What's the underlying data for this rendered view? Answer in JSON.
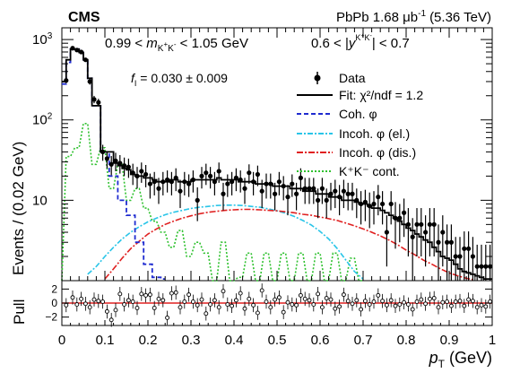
{
  "header": {
    "experiment": "CMS",
    "system": "PbPb 1.68 μb",
    "lumi_exp": "-1",
    "energy": "(5.36 TeV)"
  },
  "cuts": {
    "mass_left": "0.99 < ",
    "mass_var": "m",
    "mass_sub": "K",
    "mass_sub_sup1": "+",
    "mass_sub_mid": "K",
    "mass_sub_sup2": "-",
    "mass_right": " < 1.05 GeV",
    "rap_left": "0.6 < |",
    "rap_var": "y",
    "rap_sup": "K",
    "rap_sup2": "+",
    "rap_sup3": "K",
    "rap_sup4": "-",
    "rap_right": "| < 0.7"
  },
  "fit_param": {
    "symbol": "f",
    "sub": "I",
    "value": " = 0.030 ± 0.009"
  },
  "legend": [
    {
      "label": "Data"
    },
    {
      "label": "Fit: χ²/ndf = 1.2"
    },
    {
      "label": "Coh. φ"
    },
    {
      "label": "Incoh. φ (el.)"
    },
    {
      "label": "Incoh. φ (dis.)"
    },
    {
      "label": "K⁺K⁻ cont."
    }
  ],
  "axes": {
    "ylabel_main": "Events / (0.02 GeV)",
    "ylabel_pull": "Pull",
    "xlabel": "p",
    "xlabel_sub": "T",
    "xlabel_unit": " (GeV)",
    "x_ticks": [
      "0",
      "0.1",
      "0.2",
      "0.3",
      "0.4",
      "0.5",
      "0.6",
      "0.7",
      "0.8",
      "0.9",
      "1"
    ],
    "y_ticks": [
      {
        "base": "10",
        "exp": "3"
      },
      {
        "base": "10",
        "exp": "2"
      },
      {
        "base": "10",
        "exp": ""
      }
    ],
    "pull_ticks": [
      "2",
      "0",
      "−2"
    ]
  },
  "colors": {
    "fit": "#000000",
    "coherent": "#1f2bd0",
    "incoh_el": "#29c5e8",
    "incoh_dis": "#e02020",
    "cont": "#2fc12f",
    "pull_zero": "#e02020"
  },
  "chart_data": {
    "type": "scatter",
    "xlim": [
      0,
      1
    ],
    "ylim": [
      1,
      1400
    ],
    "y_scale": "log",
    "bin_width": 0.01,
    "data": {
      "x": [
        0.01,
        0.025,
        0.035,
        0.045,
        0.055,
        0.065,
        0.075,
        0.085,
        0.095,
        0.105,
        0.115,
        0.125,
        0.135,
        0.145,
        0.155,
        0.165,
        0.175,
        0.185,
        0.195,
        0.205,
        0.215,
        0.225,
        0.235,
        0.245,
        0.255,
        0.265,
        0.275,
        0.285,
        0.295,
        0.305,
        0.315,
        0.325,
        0.335,
        0.345,
        0.355,
        0.365,
        0.375,
        0.385,
        0.395,
        0.405,
        0.415,
        0.425,
        0.435,
        0.445,
        0.455,
        0.465,
        0.475,
        0.485,
        0.495,
        0.505,
        0.515,
        0.525,
        0.535,
        0.545,
        0.555,
        0.565,
        0.575,
        0.585,
        0.595,
        0.605,
        0.615,
        0.625,
        0.635,
        0.645,
        0.655,
        0.665,
        0.675,
        0.685,
        0.695,
        0.705,
        0.715,
        0.725,
        0.735,
        0.745,
        0.755,
        0.765,
        0.775,
        0.785,
        0.795,
        0.805,
        0.815,
        0.825,
        0.835,
        0.845,
        0.855,
        0.865,
        0.875,
        0.885,
        0.895,
        0.905,
        0.915,
        0.925,
        0.935,
        0.945,
        0.955,
        0.965,
        0.975,
        0.985,
        0.995
      ],
      "y": [
        310,
        780,
        740,
        700,
        560,
        300,
        180,
        165,
        40,
        33,
        28,
        31,
        29,
        27,
        26,
        22,
        20,
        23,
        21,
        16,
        17,
        14,
        17,
        18,
        17,
        19,
        13,
        17,
        16,
        18,
        10,
        20,
        22,
        20,
        17,
        23,
        12,
        16,
        17,
        19,
        18,
        14,
        22,
        17,
        21,
        13,
        16,
        16,
        12,
        17,
        15,
        11,
        16,
        12,
        19,
        14,
        14,
        14,
        10,
        14,
        10,
        12,
        13,
        11,
        13,
        12,
        12,
        10,
        9,
        9.5,
        8.5,
        9,
        11,
        9,
        4,
        9,
        6,
        6,
        7,
        5,
        3.5,
        5,
        5,
        4,
        5,
        5,
        3,
        4,
        3,
        3,
        2,
        2,
        2.5,
        2.5,
        2,
        1.5,
        1.5,
        1.5,
        1.5
      ],
      "err": [
        25,
        40,
        38,
        37,
        33,
        25,
        19,
        18,
        9,
        8,
        7.5,
        8,
        7.5,
        7,
        7,
        6.5,
        6,
        6.5,
        6.5,
        5.5,
        5.5,
        5,
        5.5,
        5.5,
        5.5,
        6,
        5,
        5.5,
        5,
        5.5,
        4.5,
        6,
        6.5,
        6,
        5.5,
        6.5,
        4.5,
        5,
        5.5,
        6,
        5.5,
        5,
        6,
        5.5,
        6,
        5,
        5.5,
        5.5,
        4.5,
        5.5,
        5,
        4.5,
        5,
        4.5,
        6,
        5,
        5,
        5,
        4,
        5,
        4,
        4.5,
        5,
        4.5,
        5,
        4.5,
        4.5,
        4,
        4,
        4,
        4,
        4,
        4.5,
        4,
        2.5,
        4,
        3.5,
        3,
        3.5,
        3,
        2.5,
        3,
        3,
        2.5,
        3,
        3,
        2,
        2.5,
        2,
        2,
        1.5,
        1.5,
        1.6,
        1.6,
        1.5,
        1.3,
        1.3,
        1.3,
        1.3
      ]
    },
    "fit_total": {
      "x": [
        0,
        0.01,
        0.02,
        0.03,
        0.04,
        0.05,
        0.06,
        0.07,
        0.08,
        0.09,
        0.1,
        0.11,
        0.12,
        0.13,
        0.14,
        0.15,
        0.16,
        0.17,
        0.18,
        0.19,
        0.2,
        0.21,
        0.22,
        0.23,
        0.24,
        0.25,
        0.26,
        0.27,
        0.28,
        0.29,
        0.3,
        0.31,
        0.32,
        0.33,
        0.34,
        0.35,
        0.36,
        0.37,
        0.38,
        0.39,
        0.4,
        0.41,
        0.42,
        0.43,
        0.44,
        0.45,
        0.46,
        0.47,
        0.48,
        0.49,
        0.5,
        0.51,
        0.52,
        0.53,
        0.54,
        0.55,
        0.56,
        0.57,
        0.58,
        0.59,
        0.6,
        0.61,
        0.62,
        0.63,
        0.64,
        0.65,
        0.66,
        0.67,
        0.68,
        0.69,
        0.7,
        0.71,
        0.72,
        0.73,
        0.74,
        0.75,
        0.76,
        0.77,
        0.78,
        0.79,
        0.8,
        0.81,
        0.82,
        0.83,
        0.84,
        0.85,
        0.86,
        0.87,
        0.88,
        0.89,
        0.9,
        0.91,
        0.92,
        0.93,
        0.94,
        0.95,
        0.96,
        0.97,
        0.98,
        0.99
      ],
      "y": [
        300,
        560,
        760,
        760,
        690,
        560,
        330,
        150,
        150,
        40,
        40,
        40,
        29,
        27,
        25,
        24,
        21,
        20,
        20,
        19,
        19,
        18,
        17,
        17,
        17,
        18,
        18,
        17,
        17,
        17,
        18,
        18,
        18,
        18,
        18,
        18,
        19,
        18,
        18,
        18,
        18,
        17,
        17,
        17,
        17,
        16,
        16,
        16,
        16,
        15,
        15,
        15,
        15,
        14,
        14,
        14,
        13,
        13,
        13,
        12,
        12,
        12,
        11,
        11,
        11,
        10,
        10,
        10,
        9.5,
        9,
        9,
        8.5,
        8,
        8,
        7.5,
        7,
        6.5,
        6,
        5.5,
        5,
        4.5,
        4.2,
        3.8,
        3.5,
        3.2,
        3,
        2.6,
        2.3,
        2,
        1.9,
        1.8,
        1.6,
        1.4,
        1.3,
        1.25,
        1.2,
        1.15,
        1.1,
        1.05,
        1.05
      ]
    },
    "coherent": {
      "x": [
        0,
        0.01,
        0.02,
        0.03,
        0.04,
        0.05,
        0.06,
        0.07,
        0.08,
        0.09,
        0.1,
        0.11,
        0.12,
        0.13,
        0.14,
        0.15,
        0.16,
        0.17,
        0.18,
        0.19,
        0.2,
        0.21,
        0.22,
        0.23
      ],
      "y": [
        280,
        520,
        760,
        760,
        690,
        560,
        330,
        150,
        150,
        40,
        40,
        20,
        20,
        10,
        10,
        6.5,
        6.5,
        3,
        3,
        1.6,
        1.6,
        1.1,
        1.1,
        1.05
      ]
    },
    "incoh_el": {
      "x": [
        0.06,
        0.08,
        0.1,
        0.12,
        0.14,
        0.16,
        0.18,
        0.2,
        0.22,
        0.24,
        0.26,
        0.28,
        0.3,
        0.32,
        0.34,
        0.36,
        0.38,
        0.4,
        0.42,
        0.44,
        0.46,
        0.48,
        0.5,
        0.52,
        0.54,
        0.56,
        0.58,
        0.6,
        0.62,
        0.64,
        0.66,
        0.68,
        0.7
      ],
      "y": [
        1.2,
        1.5,
        2,
        2.6,
        3.3,
        4,
        4.7,
        5.4,
        6,
        6.6,
        7.1,
        7.5,
        7.9,
        8.2,
        8.4,
        8.6,
        8.7,
        8.7,
        8.6,
        8.4,
        8.2,
        7.8,
        7.4,
        6.9,
        6.3,
        5.6,
        4.9,
        4.1,
        3.3,
        2.5,
        1.8,
        1.3,
        1.05
      ]
    },
    "incoh_dis": {
      "x": [
        0.1,
        0.12,
        0.14,
        0.16,
        0.18,
        0.2,
        0.22,
        0.24,
        0.26,
        0.28,
        0.3,
        0.32,
        0.34,
        0.36,
        0.38,
        0.4,
        0.42,
        0.44,
        0.46,
        0.48,
        0.5,
        0.52,
        0.54,
        0.56,
        0.58,
        0.6,
        0.62,
        0.64,
        0.66,
        0.68,
        0.7,
        0.72,
        0.74,
        0.76,
        0.78,
        0.8,
        0.82,
        0.84,
        0.86,
        0.88,
        0.9,
        0.92,
        0.94,
        0.96
      ],
      "y": [
        1.05,
        1.4,
        1.9,
        2.5,
        3.1,
        3.8,
        4.4,
        5,
        5.5,
        6,
        6.4,
        6.8,
        7.1,
        7.3,
        7.5,
        7.6,
        7.7,
        7.7,
        7.6,
        7.5,
        7.4,
        7.2,
        7,
        6.7,
        6.5,
        6.2,
        5.9,
        5.6,
        5.2,
        4.8,
        4.4,
        4,
        3.6,
        3.2,
        2.8,
        2.4,
        2.1,
        1.8,
        1.6,
        1.4,
        1.25,
        1.15,
        1.07,
        1.02
      ]
    },
    "cont": {
      "x": [
        0,
        0.01,
        0.02,
        0.03,
        0.04,
        0.05,
        0.06,
        0.07,
        0.08,
        0.09,
        0.1,
        0.11,
        0.12,
        0.13,
        0.14,
        0.15,
        0.16,
        0.17,
        0.18,
        0.19,
        0.2,
        0.21,
        0.22,
        0.23,
        0.24,
        0.25,
        0.26,
        0.27,
        0.28,
        0.29,
        0.3,
        0.31,
        0.32,
        0.33,
        0.34,
        0.35,
        0.36,
        0.37,
        0.38,
        0.39,
        0.4,
        0.41,
        0.42,
        0.43,
        0.44,
        0.45,
        0.46,
        0.47,
        0.48,
        0.49,
        0.5,
        0.51,
        0.52,
        0.53,
        0.54,
        0.55,
        0.56,
        0.57,
        0.58,
        0.59,
        0.6,
        0.61,
        0.62,
        0.63,
        0.64,
        0.65,
        0.66,
        0.67,
        0.68,
        0.69,
        0.7
      ],
      "y": [
        1,
        35,
        35,
        45,
        45,
        90,
        90,
        28,
        28,
        45,
        45,
        14,
        14,
        28,
        28,
        10,
        10,
        14,
        14,
        8,
        8,
        5.5,
        5.5,
        4,
        4,
        2.6,
        2.6,
        4.2,
        4.2,
        2,
        2,
        3,
        3,
        2.2,
        2.2,
        1,
        1,
        3,
        3,
        1,
        1,
        1.1,
        1.1,
        2.2,
        2.2,
        1,
        1,
        2.2,
        2.2,
        1,
        1,
        2.2,
        2.2,
        1,
        1,
        2.2,
        2.2,
        1,
        1,
        2.2,
        2.2,
        1,
        1,
        2.2,
        2.2,
        1,
        1,
        1.9,
        1.9,
        1,
        1
      ]
    },
    "pull": {
      "ylim": [
        -3.2,
        3.2
      ],
      "x": [
        0.01,
        0.025,
        0.035,
        0.045,
        0.055,
        0.065,
        0.075,
        0.085,
        0.095,
        0.105,
        0.115,
        0.125,
        0.135,
        0.145,
        0.155,
        0.165,
        0.175,
        0.185,
        0.195,
        0.205,
        0.215,
        0.225,
        0.235,
        0.245,
        0.255,
        0.265,
        0.275,
        0.285,
        0.295,
        0.305,
        0.315,
        0.325,
        0.335,
        0.345,
        0.355,
        0.365,
        0.375,
        0.385,
        0.395,
        0.405,
        0.415,
        0.425,
        0.435,
        0.445,
        0.455,
        0.465,
        0.475,
        0.485,
        0.495,
        0.505,
        0.515,
        0.525,
        0.535,
        0.545,
        0.555,
        0.565,
        0.575,
        0.585,
        0.595,
        0.605,
        0.615,
        0.625,
        0.635,
        0.645,
        0.655,
        0.665,
        0.675,
        0.685,
        0.695,
        0.705,
        0.715,
        0.725,
        0.735,
        0.745,
        0.755,
        0.765,
        0.775,
        0.785,
        0.795,
        0.805,
        0.815,
        0.825,
        0.835,
        0.845,
        0.855,
        0.865,
        0.875,
        0.885,
        0.895,
        0.905,
        0.915,
        0.925,
        0.935,
        0.945,
        0.955,
        0.965,
        0.975,
        0.985,
        0.995
      ],
      "y": [
        -0.3,
        0.8,
        -0.2,
        0.6,
        -0.1,
        -0.6,
        0.5,
        0.3,
        0.2,
        -1.2,
        -2.4,
        -1,
        1.3,
        -0.2,
        0.4,
        0.2,
        -0.7,
        1.3,
        1.1,
        1.2,
        -0.7,
        0.6,
        0.4,
        -2.1,
        1.4,
        1.5,
        -0.6,
        0.2,
        1.2,
        0.2,
        -0.3,
        0.5,
        -1.5,
        -0.2,
        0.4,
        -0.6,
        1.7,
        -0.2,
        -0.4,
        0.4,
        1.4,
        -0.8,
        0.6,
        -0.3,
        -1.4,
        1.8,
        0.2,
        -0.6,
        0.5,
        0.8,
        -1.3,
        0.1,
        -0.2,
        -0.3,
        1.1,
        0.6,
        0.4,
        -0.2,
        1.3,
        -0.6,
        0.7,
        0.5,
        -0.8,
        -0.5,
        1.2,
        0.3,
        -0.1,
        0.4,
        -0.9,
        0.3,
        -0.2,
        0.2,
        1.1,
        0.3,
        -0.3,
        0.4,
        -0.4,
        -0.2,
        0.1,
        -0.2,
        -0.9,
        0.2,
        0.5,
        -0.1,
        0.6,
        0.7,
        -0.6,
        0.1,
        0.2,
        -0.4,
        0.2,
        0.3,
        -0.4,
        0.5,
        0.3,
        -0.6,
        -0.3,
        -0.5,
        0.2
      ]
    }
  }
}
